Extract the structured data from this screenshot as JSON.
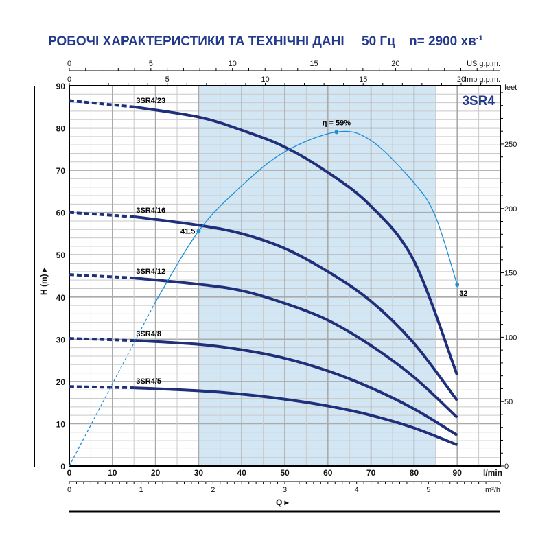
{
  "header": {
    "title": "РОБОЧІ ХАРАКТЕРИСТИКИ ТА ТЕХНІЧНІ ДАНІ",
    "frequency": "50 Гц",
    "speed": "n= 2900 хв",
    "speed_exp": "-1"
  },
  "chart_data": {
    "type": "line",
    "model": "3SR4",
    "xlabel": "Q",
    "ylabel": "H (m)",
    "x_unit": "l/min",
    "xlim": [
      0,
      100
    ],
    "ylim": [
      0,
      90
    ],
    "x_ticks": [
      0,
      10,
      20,
      30,
      40,
      50,
      60,
      70,
      80,
      90
    ],
    "y_ticks": [
      0,
      10,
      20,
      30,
      40,
      50,
      60,
      70,
      80,
      90
    ],
    "grid": true,
    "recommended_range": [
      30,
      85
    ],
    "secondary_axes": {
      "us_gpm": {
        "label": "US g.p.m.",
        "ticks": [
          0,
          5,
          10,
          15,
          20
        ]
      },
      "imp_gpm": {
        "label": "Imp g.p.m.",
        "ticks": [
          0,
          5,
          10,
          15,
          20
        ]
      },
      "m3h": {
        "label": "m³/h",
        "ticks": [
          0,
          1,
          2,
          3,
          4,
          5
        ]
      },
      "feet": {
        "label": "feet",
        "ticks": [
          0,
          50,
          100,
          150,
          200,
          250
        ]
      }
    },
    "dashed_until": 15,
    "series": [
      {
        "name": "3SR4/23",
        "x": [
          0,
          15,
          30,
          40,
          50,
          60,
          70,
          80,
          90
        ],
        "y": [
          86.5,
          85,
          82.6,
          79.5,
          75.5,
          69.5,
          61.5,
          48.5,
          21.5
        ]
      },
      {
        "name": "3SR4/16",
        "x": [
          0,
          15,
          30,
          40,
          50,
          60,
          70,
          80,
          90
        ],
        "y": [
          60,
          59,
          57,
          55,
          51.5,
          46,
          39,
          29,
          15.5
        ]
      },
      {
        "name": "3SR4/12",
        "x": [
          0,
          15,
          30,
          40,
          50,
          60,
          70,
          80,
          90
        ],
        "y": [
          45.3,
          44.5,
          43,
          41.5,
          38.5,
          34.5,
          28.5,
          21,
          11.5
        ]
      },
      {
        "name": "3SR4/8",
        "x": [
          0,
          15,
          30,
          40,
          50,
          60,
          70,
          80,
          90
        ],
        "y": [
          30.2,
          29.7,
          28.8,
          27.5,
          25.5,
          22.5,
          18.5,
          13.5,
          7.3
        ]
      },
      {
        "name": "3SR4/5",
        "x": [
          0,
          15,
          30,
          40,
          50,
          60,
          70,
          80,
          90
        ],
        "y": [
          18.8,
          18.5,
          17.8,
          17,
          15.8,
          14.2,
          12,
          9,
          5
        ]
      }
    ],
    "efficiency": {
      "symbol": "η",
      "peak_label": "59%",
      "x": [
        0,
        10,
        20,
        30,
        40,
        50,
        62,
        70,
        80,
        85,
        90
      ],
      "values_percent": [
        0,
        14.5,
        29,
        41.5,
        49.5,
        55.5,
        59,
        57.5,
        50,
        44,
        32
      ],
      "dashed_until": 20,
      "marked_points": [
        {
          "x": 30,
          "value": 41.5,
          "label": "41.5"
        },
        {
          "x": 62,
          "value": 59,
          "label": "59%"
        },
        {
          "x": 90,
          "value": 32,
          "label": "32"
        }
      ]
    },
    "colors": {
      "curves": "#1f2f7a",
      "efficiency": "#1a8fd6",
      "range_fill": "#d3e6f4",
      "title": "#233a8c"
    }
  }
}
